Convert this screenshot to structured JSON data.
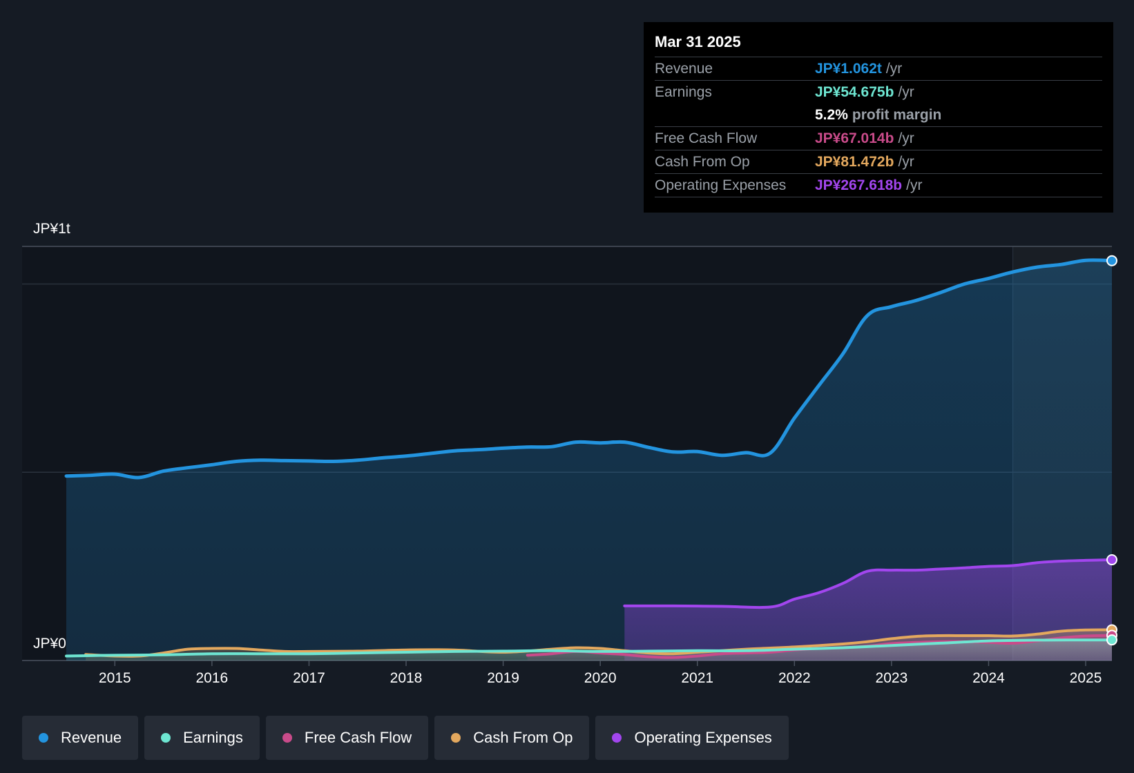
{
  "tooltip": {
    "date": "Mar 31 2025",
    "rows": {
      "revenue": {
        "label": "Revenue",
        "value": "JP¥1.062t",
        "unit": "/yr"
      },
      "earnings": {
        "label": "Earnings",
        "value": "JP¥54.675b",
        "unit": "/yr"
      },
      "margin": {
        "value": "5.2%",
        "text": "profit margin"
      },
      "fcf": {
        "label": "Free Cash Flow",
        "value": "JP¥67.014b",
        "unit": "/yr"
      },
      "cfo": {
        "label": "Cash From Op",
        "value": "JP¥81.472b",
        "unit": "/yr"
      },
      "opex": {
        "label": "Operating Expenses",
        "value": "JP¥267.618b",
        "unit": "/yr"
      }
    }
  },
  "colors": {
    "revenue": "#2394df",
    "earnings": "#6ee6d2",
    "fcf": "#c94b8a",
    "cfo": "#e3a85e",
    "opex": "#a246ee"
  },
  "legend": [
    {
      "key": "revenue",
      "label": "Revenue"
    },
    {
      "key": "earnings",
      "label": "Earnings"
    },
    {
      "key": "fcf",
      "label": "Free Cash Flow"
    },
    {
      "key": "cfo",
      "label": "Cash From Op"
    },
    {
      "key": "opex",
      "label": "Operating Expenses"
    }
  ],
  "chart_data": {
    "type": "area",
    "unit": "JP¥ billions",
    "ylim": [
      0,
      1100
    ],
    "y_tick_labels": {
      "top": "JP¥1t",
      "bottom": "JP¥0"
    },
    "x_range": [
      2014.5,
      2025.27
    ],
    "x_ticks": [
      2015,
      2016,
      2017,
      2018,
      2019,
      2020,
      2021,
      2022,
      2023,
      2024,
      2025
    ],
    "x_tick_labels": [
      "2015",
      "2016",
      "2017",
      "2018",
      "2019",
      "2020",
      "2021",
      "2022",
      "2023",
      "2024",
      "2025"
    ],
    "forecast_start": 2024.25,
    "series": [
      {
        "key": "revenue",
        "name": "Revenue",
        "points": [
          [
            2014.5,
            490
          ],
          [
            2014.75,
            492
          ],
          [
            2015.0,
            495
          ],
          [
            2015.25,
            486
          ],
          [
            2015.5,
            503
          ],
          [
            2015.75,
            512
          ],
          [
            2016.0,
            520
          ],
          [
            2016.25,
            529
          ],
          [
            2016.5,
            532
          ],
          [
            2016.75,
            531
          ],
          [
            2017.0,
            530
          ],
          [
            2017.25,
            529
          ],
          [
            2017.5,
            532
          ],
          [
            2017.75,
            538
          ],
          [
            2018.0,
            543
          ],
          [
            2018.25,
            550
          ],
          [
            2018.5,
            557
          ],
          [
            2018.75,
            560
          ],
          [
            2019.0,
            564
          ],
          [
            2019.25,
            567
          ],
          [
            2019.5,
            568
          ],
          [
            2019.75,
            580
          ],
          [
            2020.0,
            578
          ],
          [
            2020.25,
            580
          ],
          [
            2020.5,
            566
          ],
          [
            2020.75,
            554
          ],
          [
            2021.0,
            555
          ],
          [
            2021.25,
            545
          ],
          [
            2021.5,
            552
          ],
          [
            2021.75,
            551
          ],
          [
            2022.0,
            644
          ],
          [
            2022.25,
            730
          ],
          [
            2022.5,
            815
          ],
          [
            2022.75,
            916
          ],
          [
            2023.0,
            940
          ],
          [
            2023.25,
            956
          ],
          [
            2023.5,
            977
          ],
          [
            2023.75,
            1000
          ],
          [
            2024.0,
            1015
          ],
          [
            2024.25,
            1032
          ],
          [
            2024.5,
            1045
          ],
          [
            2024.75,
            1052
          ],
          [
            2025.0,
            1063
          ],
          [
            2025.27,
            1062
          ]
        ]
      },
      {
        "key": "earnings",
        "name": "Earnings",
        "points": [
          [
            2014.5,
            12
          ],
          [
            2015.0,
            14
          ],
          [
            2015.5,
            15
          ],
          [
            2016.0,
            18
          ],
          [
            2016.5,
            18
          ],
          [
            2017.0,
            18
          ],
          [
            2017.5,
            20
          ],
          [
            2018.0,
            22
          ],
          [
            2018.5,
            24
          ],
          [
            2019.0,
            25
          ],
          [
            2019.5,
            26
          ],
          [
            2020.0,
            24
          ],
          [
            2020.5,
            25
          ],
          [
            2021.0,
            26
          ],
          [
            2021.5,
            26
          ],
          [
            2022.0,
            30
          ],
          [
            2022.5,
            34
          ],
          [
            2023.0,
            40
          ],
          [
            2023.5,
            46
          ],
          [
            2024.0,
            52
          ],
          [
            2024.5,
            54
          ],
          [
            2025.27,
            54.7
          ]
        ]
      },
      {
        "key": "fcf",
        "name": "Free Cash Flow",
        "points": [
          [
            2019.25,
            14
          ],
          [
            2019.5,
            18
          ],
          [
            2019.75,
            24
          ],
          [
            2020.0,
            20
          ],
          [
            2020.25,
            16
          ],
          [
            2020.5,
            10
          ],
          [
            2020.75,
            8
          ],
          [
            2021.0,
            12
          ],
          [
            2021.25,
            18
          ],
          [
            2021.5,
            20
          ],
          [
            2021.75,
            22
          ],
          [
            2022.0,
            28
          ],
          [
            2022.25,
            32
          ],
          [
            2022.5,
            34
          ],
          [
            2022.75,
            38
          ],
          [
            2023.0,
            45
          ],
          [
            2023.25,
            48
          ],
          [
            2023.5,
            50
          ],
          [
            2023.75,
            50
          ],
          [
            2024.0,
            48
          ],
          [
            2024.25,
            46
          ],
          [
            2024.5,
            52
          ],
          [
            2024.75,
            60
          ],
          [
            2025.0,
            65
          ],
          [
            2025.27,
            67
          ]
        ]
      },
      {
        "key": "cfo",
        "name": "Cash From Op",
        "points": [
          [
            2014.7,
            16
          ],
          [
            2015.0,
            12
          ],
          [
            2015.25,
            12
          ],
          [
            2015.5,
            20
          ],
          [
            2015.75,
            30
          ],
          [
            2016.0,
            32
          ],
          [
            2016.25,
            32
          ],
          [
            2016.5,
            28
          ],
          [
            2016.75,
            24
          ],
          [
            2017.0,
            24
          ],
          [
            2017.5,
            25
          ],
          [
            2018.0,
            28
          ],
          [
            2018.5,
            28
          ],
          [
            2019.0,
            22
          ],
          [
            2019.5,
            30
          ],
          [
            2019.75,
            34
          ],
          [
            2020.0,
            32
          ],
          [
            2020.25,
            26
          ],
          [
            2020.5,
            20
          ],
          [
            2020.75,
            18
          ],
          [
            2021.0,
            22
          ],
          [
            2021.25,
            26
          ],
          [
            2021.5,
            30
          ],
          [
            2021.75,
            33
          ],
          [
            2022.0,
            36
          ],
          [
            2022.5,
            44
          ],
          [
            2022.75,
            50
          ],
          [
            2023.0,
            58
          ],
          [
            2023.25,
            64
          ],
          [
            2023.5,
            66
          ],
          [
            2023.75,
            66
          ],
          [
            2024.0,
            66
          ],
          [
            2024.25,
            65
          ],
          [
            2024.5,
            70
          ],
          [
            2024.75,
            78
          ],
          [
            2025.0,
            81
          ],
          [
            2025.27,
            81.5
          ]
        ]
      },
      {
        "key": "opex",
        "name": "Operating Expenses",
        "points": [
          [
            2020.25,
            145
          ],
          [
            2020.75,
            145
          ],
          [
            2021.25,
            144
          ],
          [
            2021.75,
            142
          ],
          [
            2022.0,
            163
          ],
          [
            2022.25,
            180
          ],
          [
            2022.5,
            205
          ],
          [
            2022.75,
            237
          ],
          [
            2023.0,
            240
          ],
          [
            2023.25,
            240
          ],
          [
            2023.5,
            243
          ],
          [
            2023.75,
            246
          ],
          [
            2024.0,
            250
          ],
          [
            2024.25,
            252
          ],
          [
            2024.5,
            260
          ],
          [
            2024.75,
            264
          ],
          [
            2025.0,
            266
          ],
          [
            2025.27,
            267.6
          ]
        ]
      }
    ]
  }
}
